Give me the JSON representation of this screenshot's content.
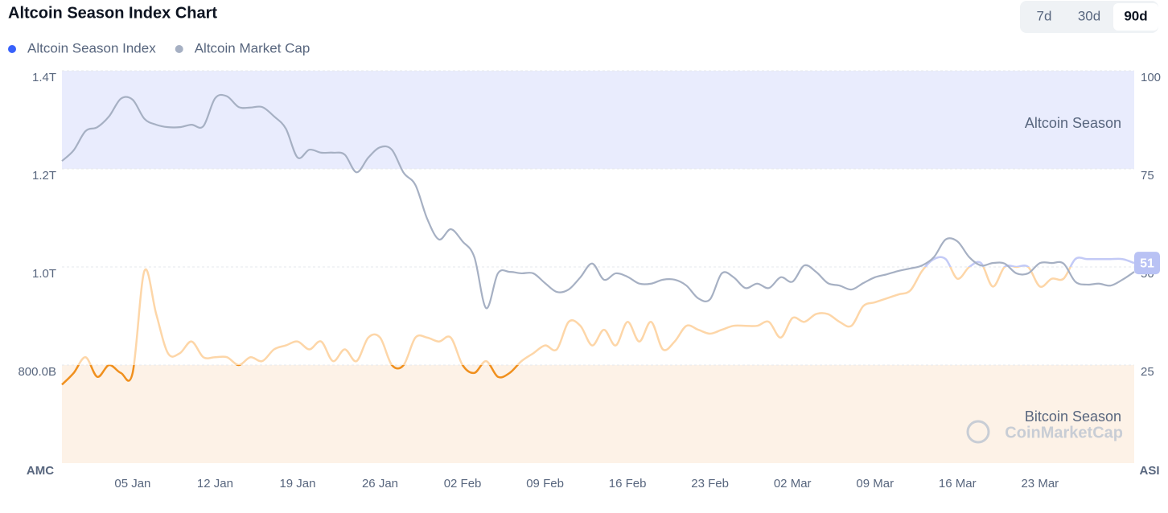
{
  "chart_data": {
    "type": "line",
    "title": "Altcoin Season Index Chart",
    "range_buttons": [
      "7d",
      "30d",
      "90d"
    ],
    "selected_range": "90d",
    "ylabel": "AMC",
    "y2label": "ASI",
    "ylim": [
      0.6,
      1.4
    ],
    "yticks": [
      {
        "value": 0.8,
        "label": "800.0B"
      },
      {
        "value": 1.0,
        "label": "1.0T"
      },
      {
        "value": 1.2,
        "label": "1.2T"
      },
      {
        "value": 1.4,
        "label": "1.4T"
      }
    ],
    "y2lim": [
      0,
      100
    ],
    "y2ticks": [
      25,
      50,
      75,
      100
    ],
    "zones": [
      {
        "label": "Altcoin Season",
        "range": [
          75,
          100
        ],
        "color": "#e9ecfd"
      },
      {
        "label": "Bitcoin Season",
        "range": [
          0,
          25
        ],
        "color": "#fdf2e7"
      }
    ],
    "watermark": "CoinMarketCap",
    "categories": [
      null,
      null,
      null,
      null,
      null,
      null,
      "05 Jan",
      null,
      null,
      null,
      null,
      null,
      null,
      "12 Jan",
      null,
      null,
      null,
      null,
      null,
      null,
      "19 Jan",
      null,
      null,
      null,
      null,
      null,
      null,
      "26 Jan",
      null,
      null,
      null,
      null,
      null,
      null,
      "02 Feb",
      null,
      null,
      null,
      null,
      null,
      null,
      "09 Feb",
      null,
      null,
      null,
      null,
      null,
      null,
      "16 Feb",
      null,
      null,
      null,
      null,
      null,
      null,
      "23 Feb",
      null,
      null,
      null,
      null,
      null,
      null,
      "02 Mar",
      null,
      null,
      null,
      null,
      null,
      null,
      "09 Mar",
      null,
      null,
      null,
      null,
      null,
      null,
      "16 Mar",
      null,
      null,
      null,
      null,
      null,
      null,
      "23 Mar",
      null,
      null,
      null,
      null,
      null,
      null,
      null,
      null
    ],
    "series": [
      {
        "name": "Altcoin Season Index",
        "color": "#3861fb",
        "axis": "y2",
        "values": [
          20,
          23,
          27,
          22,
          25,
          23,
          23,
          49,
          38,
          28,
          28,
          31,
          27,
          27,
          27,
          25,
          27,
          26,
          29,
          30,
          31,
          29,
          31,
          26,
          29,
          26,
          32,
          32,
          25,
          25,
          32,
          32,
          31,
          32,
          25,
          23,
          26,
          22,
          23,
          26,
          28,
          30,
          29,
          36,
          35,
          30,
          34,
          30,
          36,
          31,
          36,
          29,
          31,
          35,
          34,
          33,
          34,
          35,
          35,
          35,
          36,
          32,
          37,
          36,
          38,
          38,
          36,
          35,
          40,
          41,
          42,
          43,
          44,
          49,
          52,
          52,
          47,
          50,
          51,
          45,
          50,
          50,
          50,
          45,
          47,
          47,
          52,
          52,
          52,
          52,
          52,
          51
        ]
      },
      {
        "name": "Altcoin Market Cap",
        "color": "#a6b0c3",
        "values": [
          1.216,
          1.238,
          1.277,
          1.285,
          1.307,
          1.343,
          1.341,
          1.302,
          1.29,
          1.285,
          1.285,
          1.29,
          1.287,
          1.344,
          1.348,
          1.326,
          1.325,
          1.326,
          1.307,
          1.282,
          1.223,
          1.239,
          1.233,
          1.233,
          1.229,
          1.193,
          1.223,
          1.244,
          1.239,
          1.192,
          1.167,
          1.098,
          1.056,
          1.077,
          1.052,
          1.02,
          0.916,
          0.987,
          0.99,
          0.987,
          0.987,
          0.967,
          0.949,
          0.954,
          0.979,
          1.007,
          0.974,
          0.987,
          0.98,
          0.966,
          0.966,
          0.974,
          0.974,
          0.962,
          0.936,
          0.934,
          0.987,
          0.979,
          0.957,
          0.966,
          0.957,
          0.979,
          0.97,
          1.003,
          0.99,
          0.967,
          0.962,
          0.954,
          0.967,
          0.979,
          0.985,
          0.992,
          0.997,
          1.003,
          1.02,
          1.056,
          1.052,
          1.02,
          1.003,
          1.008,
          1.007,
          0.987,
          0.987,
          1.008,
          1.008,
          1.007,
          0.97,
          0.964,
          0.966,
          0.962,
          0.974,
          0.99
        ]
      }
    ]
  }
}
